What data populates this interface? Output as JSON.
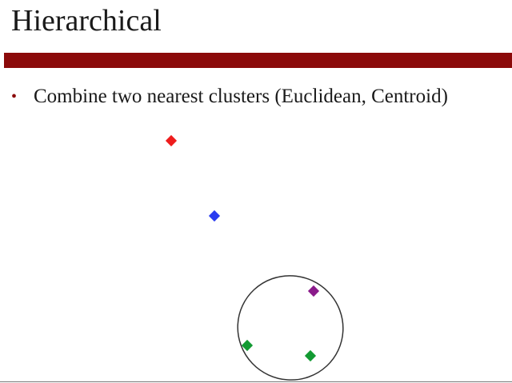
{
  "slide": {
    "title": "Hierarchical",
    "bullet_marker": "•",
    "bullet_text": "Combine two nearest clusters (Euclidean, Centroid)"
  },
  "colors": {
    "title_bar": "#8b0a0a",
    "red": "#ee1c1c",
    "blue": "#2a3cf0",
    "purple": "#8a1a8a",
    "green": "#129a32",
    "cluster_outline": "#333333"
  },
  "diagram": {
    "points": [
      {
        "id": "point-red",
        "color": "red"
      },
      {
        "id": "point-blue",
        "color": "blue"
      },
      {
        "id": "point-purple",
        "color": "purple"
      },
      {
        "id": "point-green-left",
        "color": "green"
      },
      {
        "id": "point-green-right",
        "color": "green"
      }
    ],
    "cluster": {
      "members": [
        "point-purple",
        "point-green-left",
        "point-green-right"
      ]
    }
  }
}
